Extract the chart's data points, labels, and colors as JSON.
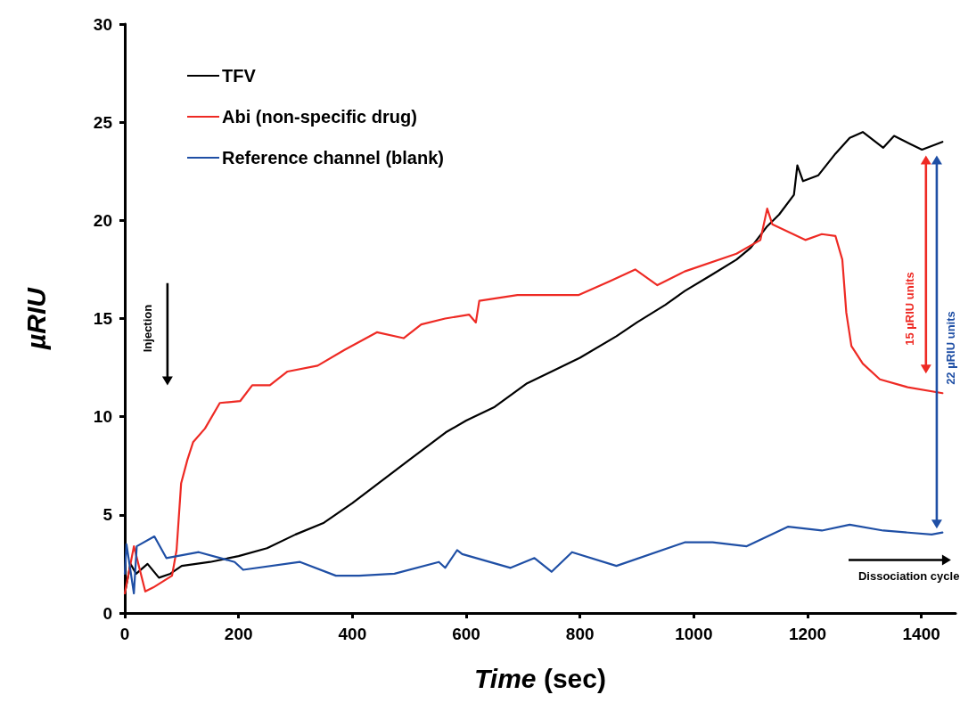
{
  "chart_data": {
    "type": "line",
    "xlabel": "Time (sec)",
    "ylabel": "µRIU",
    "xlim": [
      0,
      1460
    ],
    "xticks": [
      0,
      200,
      400,
      600,
      800,
      1000,
      1200,
      1400
    ],
    "ylim": [
      0,
      30
    ],
    "yticks": [
      0,
      5,
      10,
      15,
      20,
      25,
      30
    ],
    "grid": false,
    "legend": "top left",
    "marker": "none",
    "line_style": "solid",
    "annotations": [
      "Injection",
      "15 µRIU units",
      "22 µRIU units",
      "Dissociation cycle"
    ],
    "series": [
      {
        "name": "TFV",
        "color": "#000000",
        "x": [
          0,
          10,
          20,
          40,
          60,
          80,
          100,
          150,
          200,
          250,
          300,
          350,
          400,
          450,
          500,
          564,
          600,
          650,
          707,
          750,
          800,
          864,
          900,
          950,
          984,
          1030,
          1075,
          1100,
          1129,
          1150,
          1176,
          1182,
          1192,
          1219,
          1249,
          1274,
          1297,
          1333,
          1352,
          1380,
          1401,
          1437
        ],
        "values": [
          1.0,
          2.5,
          2.0,
          2.5,
          1.8,
          2.0,
          2.4,
          2.6,
          2.9,
          3.3,
          4.0,
          4.6,
          5.6,
          6.7,
          7.8,
          9.2,
          9.8,
          10.5,
          11.7,
          12.3,
          13.0,
          14.1,
          14.8,
          15.7,
          16.4,
          17.2,
          18.0,
          18.6,
          19.7,
          20.3,
          21.3,
          22.8,
          22.0,
          22.3,
          23.4,
          24.2,
          24.5,
          23.7,
          24.3,
          23.9,
          23.6,
          24.0
        ]
      },
      {
        "name": "Abi (non-specific drug)",
        "color": "#ee2a24",
        "x": [
          0,
          16,
          36,
          50,
          83,
          91,
          99,
          110,
          120,
          141,
          167,
          203,
          224,
          255,
          286,
          339,
          386,
          443,
          490,
          521,
          563,
          605,
          617,
          623,
          690,
          798,
          852,
          897,
          936,
          984,
          1075,
          1117,
          1129,
          1138,
          1196,
          1225,
          1249,
          1261,
          1268,
          1277,
          1297,
          1327,
          1376,
          1437
        ],
        "values": [
          1.0,
          3.4,
          1.1,
          1.3,
          1.9,
          3.2,
          6.6,
          7.8,
          8.7,
          9.4,
          10.7,
          10.8,
          11.6,
          11.6,
          12.3,
          12.6,
          13.4,
          14.3,
          14.0,
          14.7,
          15.0,
          15.2,
          14.8,
          15.9,
          16.2,
          16.2,
          16.9,
          17.5,
          16.7,
          17.4,
          18.3,
          19.0,
          20.6,
          19.8,
          19.0,
          19.3,
          19.2,
          18.0,
          15.3,
          13.6,
          12.7,
          11.9,
          11.5,
          11.2
        ]
      },
      {
        "name": "Reference channel (blank)",
        "color": "#1f4fa5",
        "x": [
          0,
          3,
          16,
          21,
          52,
          73,
          130,
          193,
          208,
          308,
          371,
          412,
          474,
          552,
          563,
          584,
          593,
          678,
          720,
          750,
          786,
          864,
          984,
          1033,
          1093,
          1166,
          1225,
          1274,
          1333,
          1418,
          1437
        ],
        "values": [
          2.0,
          3.5,
          1.0,
          3.4,
          3.9,
          2.8,
          3.1,
          2.6,
          2.2,
          2.6,
          1.9,
          1.9,
          2.0,
          2.6,
          2.3,
          3.2,
          3.0,
          2.3,
          2.8,
          2.1,
          3.1,
          2.4,
          3.6,
          3.6,
          3.4,
          4.4,
          4.2,
          4.5,
          4.2,
          4.0,
          4.1
        ]
      }
    ]
  }
}
